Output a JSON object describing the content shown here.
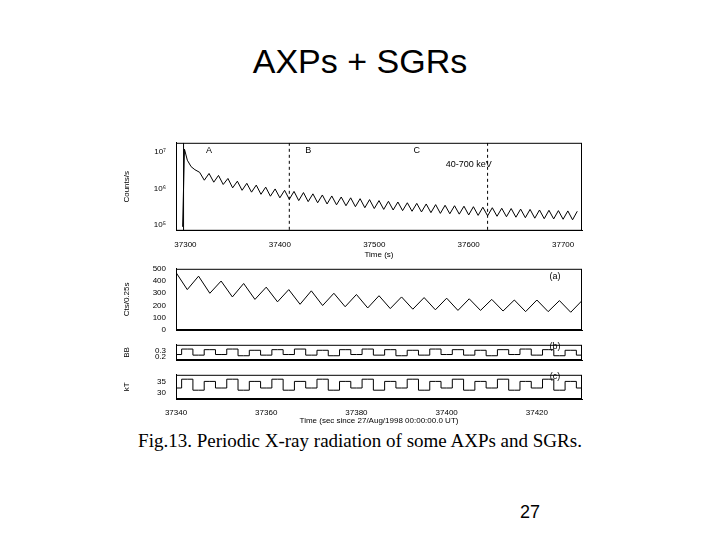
{
  "slide": {
    "title": "AXPs + SGRs",
    "caption": "Fig.13. Periodic X-ray radiation of some AXPs and SGRs.",
    "page": "27"
  },
  "chart_data": [
    {
      "type": "line",
      "color": "#000000",
      "line_style": "solid",
      "log": "y",
      "grid": false,
      "x_label": "Time (s)",
      "y_label": "Counts/s",
      "xlim": [
        37290,
        37720
      ],
      "xticks": [
        37300,
        37400,
        37500,
        37600,
        37700
      ],
      "ylim": [
        70000,
        18000000
      ],
      "yticks": [
        {
          "value": 100000,
          "label": "10⁵"
        },
        {
          "value": 1000000,
          "label": "10⁶"
        },
        {
          "value": 10000000,
          "label": "10⁷"
        }
      ],
      "annotations": [
        {
          "text": "A",
          "x": 37325,
          "y": 11000000
        },
        {
          "text": "B",
          "x": 37430,
          "y": 11000000
        },
        {
          "text": "C",
          "x": 37545,
          "y": 11000000
        },
        {
          "text": "40-700 keV",
          "x": 37600,
          "y": 4500000
        }
      ],
      "vlines": [
        37298,
        37410,
        37620
      ],
      "x": [
        37297,
        37299,
        37302,
        37306,
        37310,
        37315,
        37320,
        37325,
        37330,
        37335,
        37340,
        37345,
        37350,
        37355,
        37360,
        37365,
        37370,
        37375,
        37380,
        37385,
        37390,
        37395,
        37400,
        37405,
        37410,
        37415,
        37420,
        37425,
        37430,
        37435,
        37440,
        37445,
        37450,
        37455,
        37460,
        37465,
        37470,
        37475,
        37480,
        37485,
        37490,
        37495,
        37500,
        37505,
        37510,
        37515,
        37520,
        37525,
        37530,
        37535,
        37540,
        37545,
        37550,
        37555,
        37560,
        37565,
        37570,
        37575,
        37580,
        37585,
        37590,
        37595,
        37600,
        37605,
        37610,
        37615,
        37620,
        37625,
        37630,
        37635,
        37640,
        37645,
        37650,
        37655,
        37660,
        37665,
        37670,
        37675,
        37680,
        37685,
        37690,
        37695,
        37700,
        37705,
        37710,
        37715
      ],
      "values": [
        90000,
        12000000,
        6000000,
        4000000,
        3300000,
        2800000,
        1700000,
        2600000,
        1500000,
        2300000,
        1300000,
        1900000,
        1050000,
        1600000,
        900000,
        1400000,
        800000,
        1250000,
        700000,
        1100000,
        620000,
        980000,
        560000,
        900000,
        510000,
        840000,
        470000,
        780000,
        440000,
        720000,
        410000,
        670000,
        380000,
        630000,
        360000,
        590000,
        340000,
        560000,
        320000,
        530000,
        300000,
        500000,
        285000,
        470000,
        270000,
        450000,
        260000,
        430000,
        250000,
        410000,
        240000,
        395000,
        230000,
        380000,
        220000,
        365000,
        210000,
        350000,
        205000,
        340000,
        200000,
        330000,
        190000,
        320000,
        185000,
        310000,
        180000,
        300000,
        175000,
        290000,
        170000,
        285000,
        165000,
        275000,
        160000,
        270000,
        155000,
        260000,
        150000,
        255000,
        148000,
        250000,
        145000,
        245000,
        140000,
        240000
      ]
    },
    {
      "type": "line",
      "color": "#000000",
      "line_style": "solid",
      "grid": false,
      "tick_labels": "y",
      "y_label": "Cts/0.25s",
      "xlim": [
        37340,
        37430
      ],
      "xticks": [
        37340,
        37360,
        37380,
        37400,
        37420
      ],
      "ylim": [
        0,
        500
      ],
      "yticks": [
        0,
        100,
        200,
        300,
        400,
        500
      ],
      "annotations": [
        {
          "text": "(a)",
          "x": 37424,
          "y": 440
        }
      ],
      "x": [
        37340,
        37342.5,
        37345,
        37347.5,
        37350,
        37352.5,
        37355,
        37357.5,
        37360,
        37362.5,
        37365,
        37367.5,
        37370,
        37372.5,
        37375,
        37377.5,
        37380,
        37382.5,
        37385,
        37387.5,
        37390,
        37392.5,
        37395,
        37397.5,
        37400,
        37402.5,
        37405,
        37407.5,
        37410,
        37412.5,
        37415,
        37417.5,
        37420,
        37422.5,
        37425,
        37427.5,
        37430
      ],
      "values": [
        470,
        330,
        440,
        300,
        400,
        270,
        380,
        250,
        350,
        230,
        330,
        210,
        320,
        200,
        300,
        190,
        290,
        180,
        280,
        175,
        270,
        170,
        265,
        165,
        260,
        160,
        255,
        160,
        250,
        155,
        245,
        150,
        245,
        150,
        240,
        145,
        240
      ]
    },
    {
      "type": "line",
      "color": "#000000",
      "line_style": "steps",
      "grid": false,
      "tick_labels": "y",
      "y_label": "BB",
      "xlim": [
        37340,
        37430
      ],
      "xticks": [
        37340,
        37360,
        37380,
        37400,
        37420
      ],
      "ylim": [
        0.15,
        0.4
      ],
      "yticks": [
        0.2,
        0.3
      ],
      "annotations": [
        {
          "text": "(b)",
          "x": 37424,
          "y": 0.37
        }
      ],
      "x": [
        37340,
        37342.5,
        37345,
        37347.5,
        37350,
        37352.5,
        37355,
        37357.5,
        37360,
        37362.5,
        37365,
        37367.5,
        37370,
        37372.5,
        37375,
        37377.5,
        37380,
        37382.5,
        37385,
        37387.5,
        37390,
        37392.5,
        37395,
        37397.5,
        37400,
        37402.5,
        37405,
        37407.5,
        37410,
        37412.5,
        37415,
        37417.5,
        37420,
        37422.5,
        37425,
        37427.5,
        37430
      ],
      "values": [
        0.24,
        0.33,
        0.23,
        0.32,
        0.24,
        0.33,
        0.22,
        0.31,
        0.23,
        0.32,
        0.24,
        0.33,
        0.23,
        0.31,
        0.22,
        0.32,
        0.24,
        0.33,
        0.23,
        0.32,
        0.22,
        0.31,
        0.23,
        0.33,
        0.24,
        0.32,
        0.23,
        0.31,
        0.22,
        0.32,
        0.24,
        0.33,
        0.23,
        0.32,
        0.22,
        0.31,
        0.23
      ]
    },
    {
      "type": "line",
      "color": "#000000",
      "line_style": "steps",
      "grid": false,
      "y_label": "kT",
      "x_label": "Time (sec since 27/Aug/1998 00:00:00.0 UT)",
      "xlim": [
        37340,
        37430
      ],
      "xticks": [
        37340,
        37360,
        37380,
        37400,
        37420
      ],
      "ylim": [
        27,
        38
      ],
      "yticks": [
        30,
        35
      ],
      "annotations": [
        {
          "text": "(c)",
          "x": 37424,
          "y": 37
        }
      ],
      "x": [
        37340,
        37342.5,
        37345,
        37347.5,
        37350,
        37352.5,
        37355,
        37357.5,
        37360,
        37362.5,
        37365,
        37367.5,
        37370,
        37372.5,
        37375,
        37377.5,
        37380,
        37382.5,
        37385,
        37387.5,
        37390,
        37392.5,
        37395,
        37397.5,
        37400,
        37402.5,
        37405,
        37407.5,
        37410,
        37412.5,
        37415,
        37417.5,
        37420,
        37422.5,
        37425,
        37427.5,
        37430
      ],
      "values": [
        32,
        36,
        31,
        35,
        32,
        36,
        31,
        35,
        32,
        36,
        31,
        35,
        32,
        36,
        31,
        35,
        32,
        36,
        31,
        35,
        32,
        36,
        31,
        35,
        32,
        36,
        31,
        35,
        32,
        36,
        31,
        35,
        32,
        36,
        31,
        35,
        32
      ]
    }
  ]
}
